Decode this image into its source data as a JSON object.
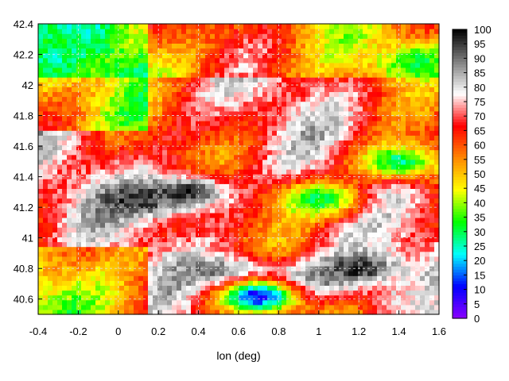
{
  "chart_data": {
    "type": "heatmap",
    "title": "",
    "xlabel": "lon (deg)",
    "ylabel": "",
    "xlim": [
      -0.4,
      1.6
    ],
    "ylim": [
      40.5,
      42.4
    ],
    "x_ticks": [
      "-0.4",
      "-0.2",
      "0",
      "0.2",
      "0.4",
      "0.6",
      "0.8",
      "1",
      "1.2",
      "1.4",
      "1.6"
    ],
    "y_ticks": [
      "40.6",
      "40.8",
      "41",
      "41.2",
      "41.4",
      "41.6",
      "41.8",
      "42",
      "42.2",
      "42.4"
    ],
    "grid": true,
    "colorbar": {
      "range": [
        0,
        100
      ],
      "ticks": [
        "0",
        "5",
        "10",
        "15",
        "20",
        "25",
        "30",
        "35",
        "40",
        "45",
        "50",
        "55",
        "60",
        "65",
        "70",
        "75",
        "80",
        "85",
        "90",
        "95",
        "100"
      ],
      "palette": [
        "#8c00ff",
        "#0000ff",
        "#00ffff",
        "#00ff00",
        "#ffff00",
        "#ff8800",
        "#ff0000",
        "#ffffff",
        "#808080",
        "#000000"
      ]
    },
    "features": [
      {
        "type": "blob",
        "x": 0.35,
        "y": 41.3,
        "value": 97
      },
      {
        "type": "blob",
        "x": 0.55,
        "y": 40.75,
        "value": 98
      },
      {
        "type": "blob",
        "x": 0.9,
        "y": 40.7,
        "value": 99
      },
      {
        "type": "blob",
        "x": 1.2,
        "y": 40.8,
        "value": 97
      },
      {
        "type": "blob",
        "x": 0.1,
        "y": 41.25,
        "value": 96
      },
      {
        "type": "blob",
        "x": 1.0,
        "y": 41.25,
        "value": 30
      },
      {
        "type": "blob",
        "x": 1.4,
        "y": 41.5,
        "value": 28
      },
      {
        "type": "blob",
        "x": -0.3,
        "y": 42.3,
        "value": 30
      },
      {
        "type": "blob",
        "x": 1.5,
        "y": 42.15,
        "value": 32
      },
      {
        "type": "blob",
        "x": 0.7,
        "y": 40.62,
        "value": 10
      },
      {
        "type": "blob",
        "x": 1.45,
        "y": 40.6,
        "value": 78
      }
    ]
  }
}
